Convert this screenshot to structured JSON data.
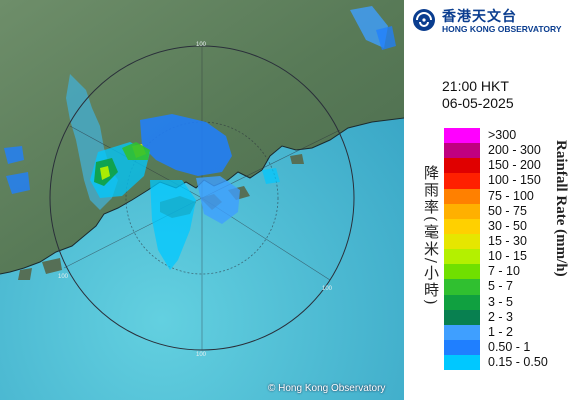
{
  "map": {
    "range_label": "100",
    "copyright": "© Hong Kong Observatory",
    "colors": {
      "sea": "#42b7d2",
      "land": "#5b7a58",
      "ring": "#2a2f3a"
    }
  },
  "header": {
    "logo_zh": "香港天文台",
    "logo_en": "HONG KONG OBSERVATORY",
    "logo_icon": "hko-logo-icon"
  },
  "timestamp": {
    "time": "21:00 HKT",
    "date": "06-05-2025"
  },
  "legend": {
    "title_zh": "降雨率(毫米/小時)",
    "title_en": "Rainfall Rate (mm/h)",
    "items": [
      {
        "label": ">300",
        "color": "#ff00ff"
      },
      {
        "label": "200 - 300",
        "color": "#c00080"
      },
      {
        "label": "150 - 200",
        "color": "#e00000"
      },
      {
        "label": "100 - 150",
        "color": "#ff2000"
      },
      {
        "label": "75 - 100",
        "color": "#ff8000"
      },
      {
        "label": "50 - 75",
        "color": "#ffb000"
      },
      {
        "label": "30 - 50",
        "color": "#ffd000"
      },
      {
        "label": "15 - 30",
        "color": "#e6e600"
      },
      {
        "label": "10 - 15",
        "color": "#b4f000"
      },
      {
        "label": "7 - 10",
        "color": "#70e000"
      },
      {
        "label": "5 - 7",
        "color": "#30c030"
      },
      {
        "label": "3 - 5",
        "color": "#10a040"
      },
      {
        "label": "2 - 3",
        "color": "#088050"
      },
      {
        "label": "1 - 2",
        "color": "#3f9fff"
      },
      {
        "label": "0.50 - 1",
        "color": "#1f7fff"
      },
      {
        "label": "0.15 - 0.50",
        "color": "#00c8ff"
      }
    ]
  }
}
